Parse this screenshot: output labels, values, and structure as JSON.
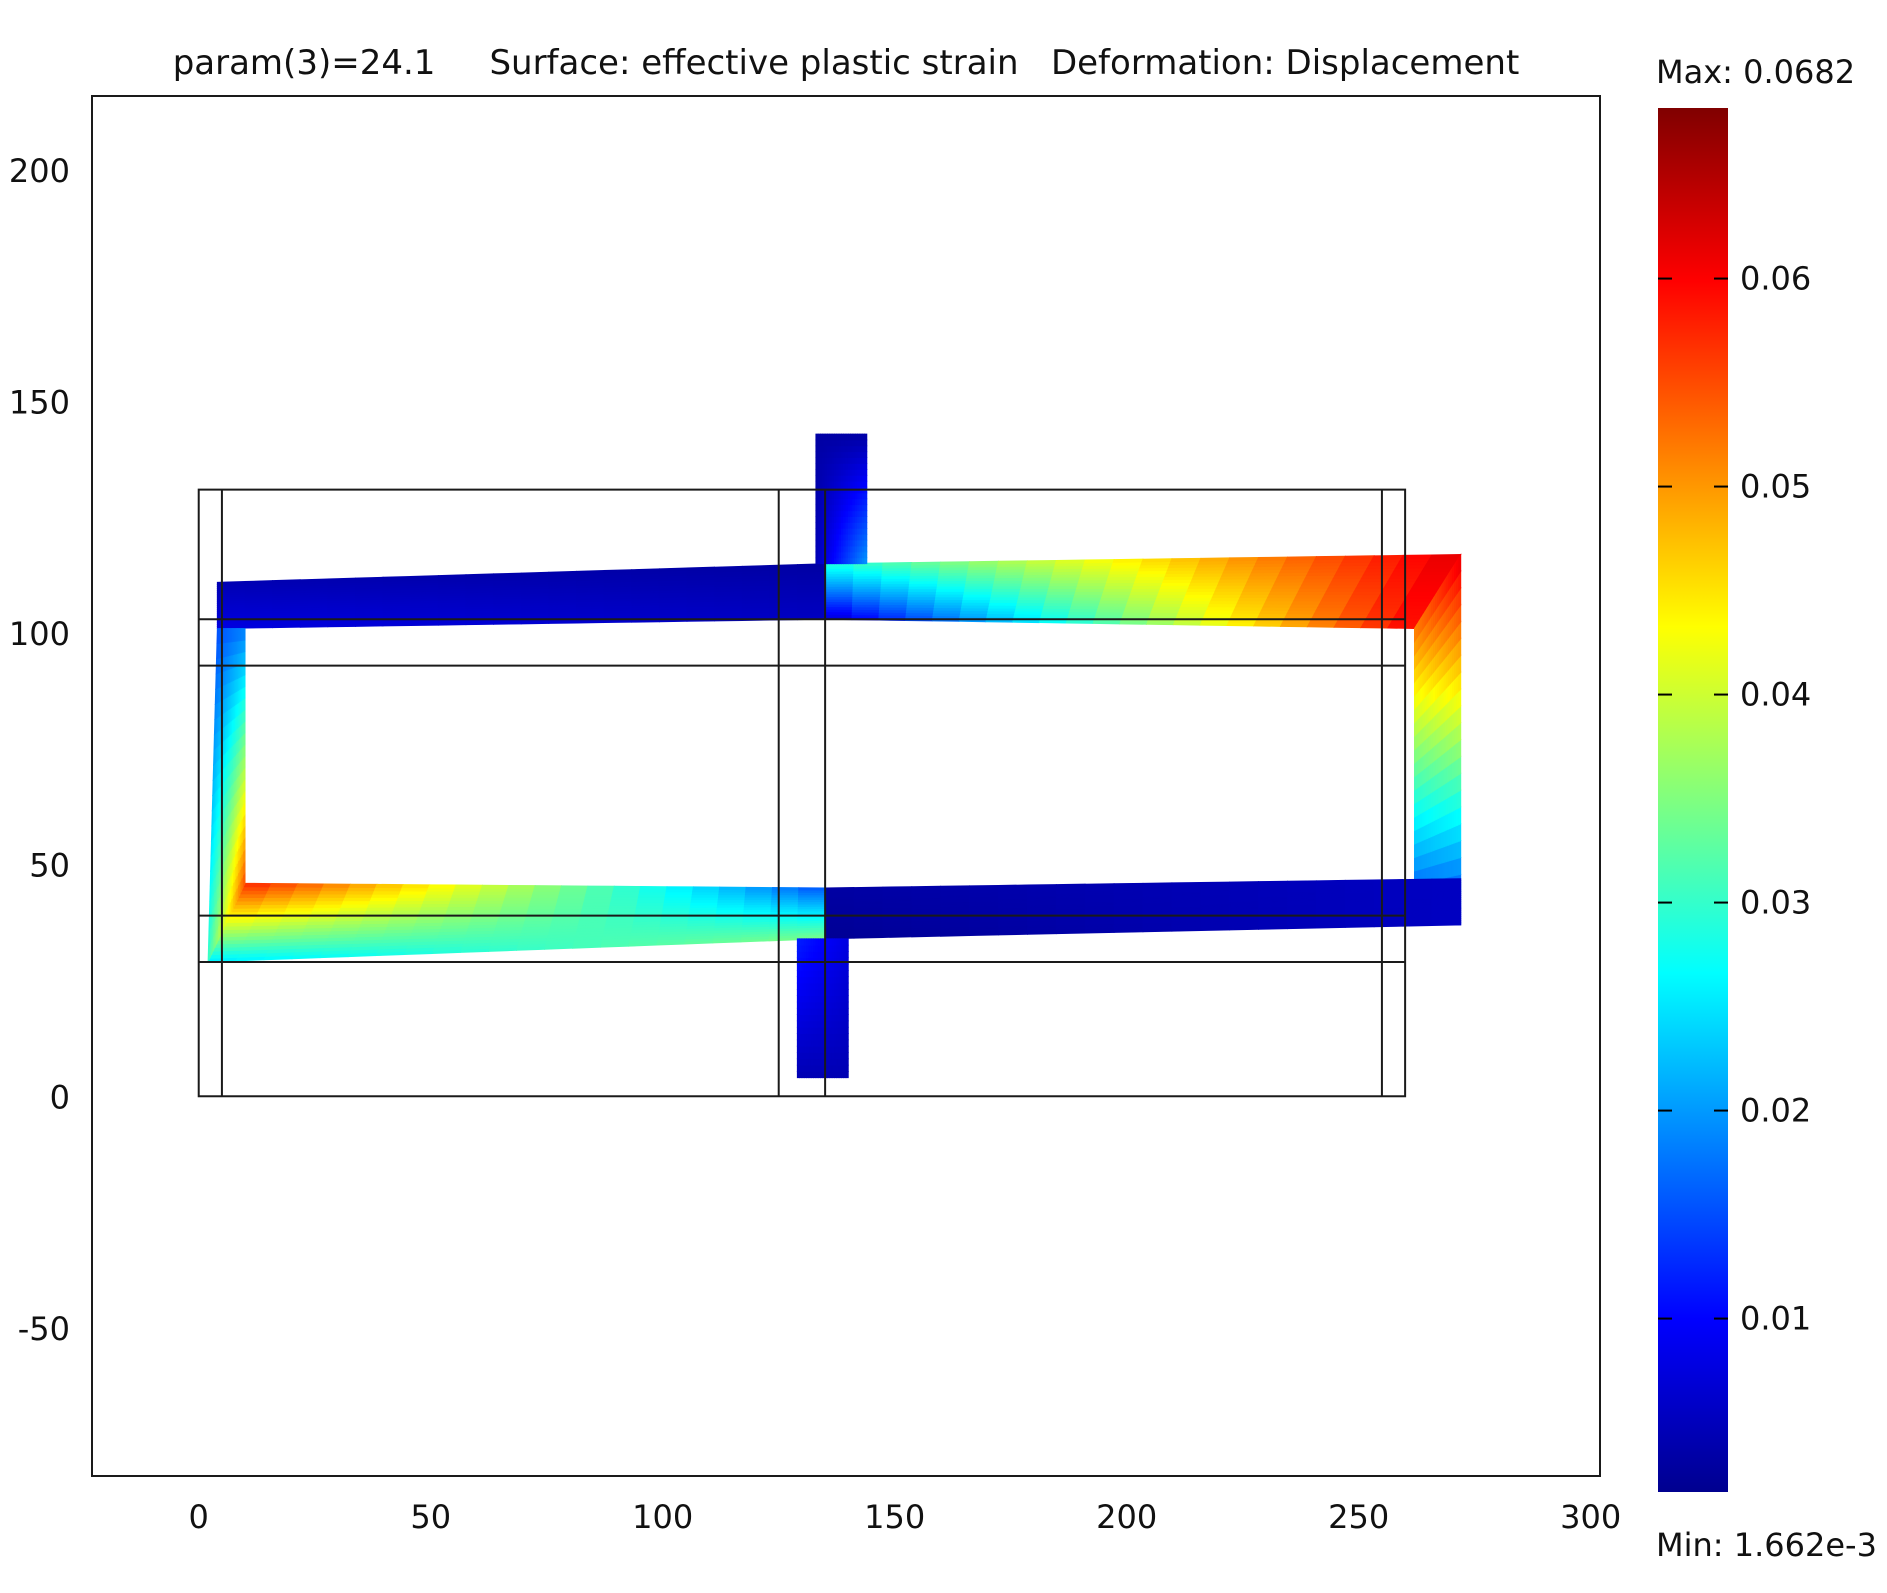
{
  "chart_data": {
    "type": "heatmap",
    "title": "param(3)=24.1     Surface: effective plastic strain   Deformation: Displacement",
    "xlabel": "",
    "ylabel": "",
    "xlim": [
      -23,
      302
    ],
    "ylim": [
      -82,
      216
    ],
    "xticks": [
      0,
      50,
      100,
      150,
      200,
      250,
      300
    ],
    "yticks": [
      -50,
      0,
      50,
      100,
      150,
      200
    ],
    "grid": false,
    "colormap": "jet",
    "colorbar": {
      "min": 0.001662,
      "max": 0.0682,
      "min_label": "Min: 1.662e-3",
      "max_label": "Max: 0.0682",
      "ticks": [
        0.01,
        0.02,
        0.03,
        0.04,
        0.05,
        0.06
      ],
      "placement": "right"
    },
    "undeformed_geometry": {
      "outer_box": [
        0,
        0,
        260,
        131
      ],
      "vertical_lines_x": [
        5,
        125,
        135,
        255
      ],
      "horizontal_lines_y": [
        29,
        39,
        93,
        103
      ]
    },
    "deformed_shape": [
      {
        "name": "top-beam-left",
        "polygon": [
          [
            4,
            101
          ],
          [
            135,
            103
          ],
          [
            135,
            115
          ],
          [
            4,
            111
          ]
        ],
        "values": [
          0.008,
          0.006,
          0.004,
          0.005
        ]
      },
      {
        "name": "top-beam-right",
        "polygon": [
          [
            135,
            103
          ],
          [
            262,
            101
          ],
          [
            272,
            117
          ],
          [
            135,
            115
          ]
        ],
        "values": [
          0.006,
          0.06,
          0.062,
          0.028
        ]
      },
      {
        "name": "right-column",
        "polygon": [
          [
            262,
            37
          ],
          [
            272,
            37
          ],
          [
            272,
            117
          ],
          [
            262,
            101
          ]
        ],
        "values": [
          0.012,
          0.012,
          0.062,
          0.052
        ]
      },
      {
        "name": "bottom-beam-right",
        "polygon": [
          [
            135,
            34
          ],
          [
            272,
            37
          ],
          [
            272,
            47
          ],
          [
            135,
            45
          ]
        ],
        "values": [
          0.003,
          0.006,
          0.006,
          0.004
        ]
      },
      {
        "name": "bottom-beam-left",
        "polygon": [
          [
            2,
            29
          ],
          [
            135,
            34
          ],
          [
            135,
            45
          ],
          [
            10,
            46
          ]
        ],
        "values": [
          0.025,
          0.035,
          0.015,
          0.058
        ]
      },
      {
        "name": "left-column",
        "polygon": [
          [
            2,
            29
          ],
          [
            10,
            46
          ],
          [
            10,
            101
          ],
          [
            4,
            101
          ]
        ],
        "values": [
          0.03,
          0.055,
          0.018,
          0.015
        ]
      },
      {
        "name": "top-post",
        "polygon": [
          [
            133,
            115
          ],
          [
            144,
            115
          ],
          [
            144,
            143
          ],
          [
            133,
            143
          ]
        ],
        "values": [
          0.005,
          0.02,
          0.004,
          0.004
        ]
      },
      {
        "name": "bottom-post",
        "polygon": [
          [
            129,
            4
          ],
          [
            140,
            4
          ],
          [
            140,
            34
          ],
          [
            129,
            34
          ]
        ],
        "values": [
          0.005,
          0.005,
          0.008,
          0.012
        ]
      }
    ]
  }
}
